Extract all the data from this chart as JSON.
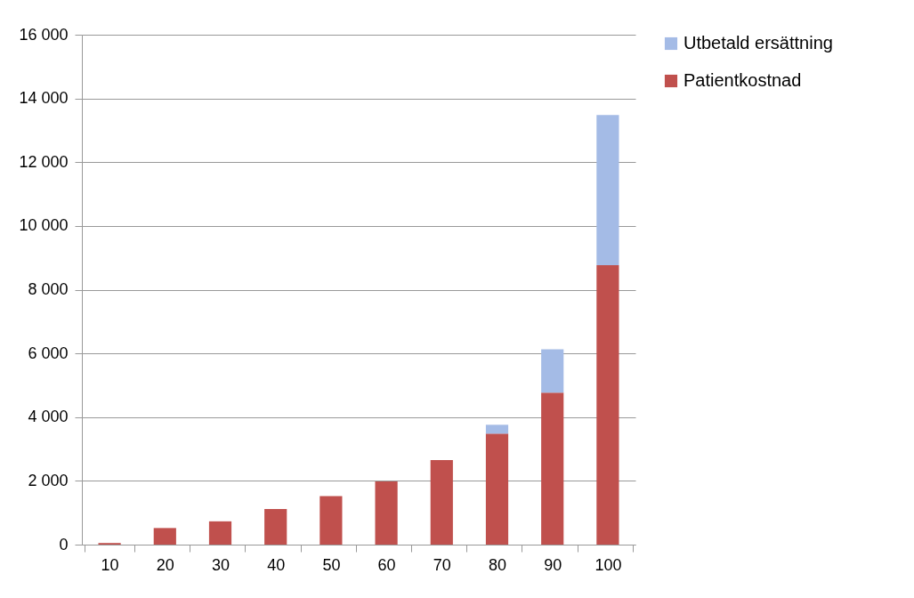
{
  "chart_data": {
    "type": "bar",
    "stacked": true,
    "categories": [
      "10",
      "20",
      "30",
      "40",
      "50",
      "60",
      "70",
      "80",
      "90",
      "100"
    ],
    "series": [
      {
        "name": "Patientkostnad",
        "color": "#c0504d",
        "values": [
          50,
          520,
          730,
          1120,
          1520,
          1980,
          2650,
          3480,
          4770,
          8770
        ]
      },
      {
        "name": "Utbetald ersättning",
        "color": "#a4bbe6",
        "values": [
          0,
          0,
          0,
          0,
          0,
          0,
          0,
          280,
          1360,
          4710
        ]
      }
    ],
    "ylim": [
      0,
      16000
    ],
    "yticks": [
      {
        "value": 0,
        "label": "0"
      },
      {
        "value": 2000,
        "label": "2 000"
      },
      {
        "value": 4000,
        "label": "4 000"
      },
      {
        "value": 6000,
        "label": "6 000"
      },
      {
        "value": 8000,
        "label": "8 000"
      },
      {
        "value": 10000,
        "label": "10 000"
      },
      {
        "value": 12000,
        "label": "12 000"
      },
      {
        "value": 14000,
        "label": "14 000"
      },
      {
        "value": 16000,
        "label": "16 000"
      }
    ],
    "grid": "y",
    "legend": "right"
  }
}
